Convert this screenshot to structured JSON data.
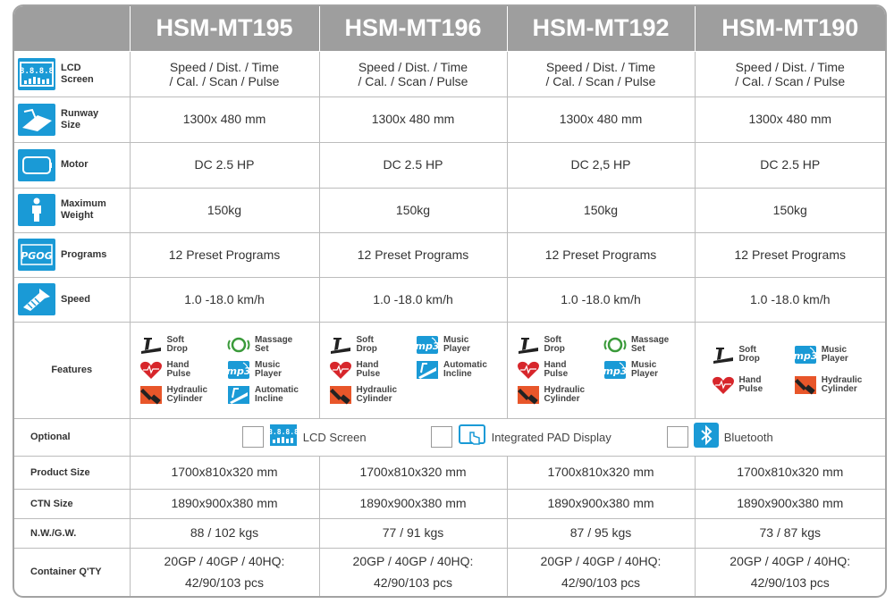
{
  "header": {
    "models": [
      "HSM-MT195",
      "HSM-MT196",
      "HSM-MT192",
      "HSM-MT190"
    ]
  },
  "rows": {
    "lcd": {
      "label": "LCD\nScreen",
      "icon": "lcd-screen-icon",
      "values": [
        "Speed / Dist. / Time\n/ Cal. / Scan / Pulse",
        "Speed / Dist. / Time\n/ Cal. / Scan / Pulse",
        "Speed / Dist. / Time\n/ Cal. / Scan / Pulse",
        "Speed / Dist. / Time\n/ Cal. / Scan / Pulse"
      ]
    },
    "runway": {
      "label": "Runway\nSize",
      "icon": "runway-icon",
      "values": [
        "1300x 480 mm",
        "1300x 480 mm",
        "1300x 480 mm",
        "1300x 480 mm"
      ]
    },
    "motor": {
      "label": "Motor",
      "icon": "motor-icon",
      "values": [
        "DC 2.5 HP",
        "DC 2.5 HP",
        "DC 2,5 HP",
        "DC 2.5 HP"
      ]
    },
    "weight": {
      "label": "Maximum\nWeight",
      "icon": "person-icon",
      "values": [
        "150kg",
        "150kg",
        "150kg",
        "150kg"
      ]
    },
    "programs": {
      "label": "Programs",
      "icon": "programs-icon",
      "values": [
        "12 Preset Programs",
        "12 Preset Programs",
        "12 Preset Programs",
        "12 Preset Programs"
      ]
    },
    "speed": {
      "label": "Speed",
      "icon": "speed-icon",
      "values": [
        "1.0 -18.0 km/h",
        "1.0 -18.0 km/h",
        "1.0 -18.0 km/h",
        "1.0 -18.0 km/h"
      ]
    }
  },
  "features": {
    "label": "Features",
    "cols": [
      [
        {
          "name": "Soft\nDrop",
          "icon": "soft-drop-icon"
        },
        {
          "name": "Massage\nSet",
          "icon": "massage-icon"
        },
        {
          "name": "Hand\nPulse",
          "icon": "heart-icon"
        },
        {
          "name": "Music\nPlayer",
          "icon": "mp3-icon"
        },
        {
          "name": "Hydraulic\nCylinder",
          "icon": "hydraulic-icon"
        },
        {
          "name": "Automatic\nIncline",
          "icon": "incline-icon"
        }
      ],
      [
        {
          "name": "Soft\nDrop",
          "icon": "soft-drop-icon"
        },
        {
          "name": "Music\nPlayer",
          "icon": "mp3-icon"
        },
        {
          "name": "Hand\nPulse",
          "icon": "heart-icon"
        },
        {
          "name": "Automatic\nIncline",
          "icon": "incline-icon"
        },
        {
          "name": "Hydraulic\nCylinder",
          "icon": "hydraulic-icon"
        }
      ],
      [
        {
          "name": "Soft\nDrop",
          "icon": "soft-drop-icon"
        },
        {
          "name": "Massage\nSet",
          "icon": "massage-icon"
        },
        {
          "name": "Hand\nPulse",
          "icon": "heart-icon"
        },
        {
          "name": "Music\nPlayer",
          "icon": "mp3-icon"
        },
        {
          "name": "Hydraulic\nCylinder",
          "icon": "hydraulic-icon"
        }
      ],
      [
        {
          "name": "Soft\nDrop",
          "icon": "soft-drop-icon"
        },
        {
          "name": "Music\nPlayer",
          "icon": "mp3-icon"
        },
        {
          "name": "Hand\nPulse",
          "icon": "heart-icon"
        },
        {
          "name": "Hydraulic\nCylinder",
          "icon": "hydraulic-icon"
        }
      ]
    ]
  },
  "optional": {
    "label": "Optional",
    "items": [
      {
        "text": "LCD Screen",
        "icon": "lcd-screen-icon"
      },
      {
        "text": "Integrated PAD Display",
        "icon": "tablet-touch-icon"
      },
      {
        "text": "Bluetooth",
        "icon": "bluetooth-icon"
      }
    ]
  },
  "specs": {
    "product_size": {
      "label": "Product Size",
      "values": [
        "1700x810x320  mm",
        "1700x810x320  mm",
        "1700x810x320  mm",
        "1700x810x320  mm"
      ]
    },
    "ctn_size": {
      "label": "CTN Size",
      "values": [
        "1890x900x380 mm",
        "1890x900x380 mm",
        "1890x900x380 mm",
        "1890x900x380 mm"
      ]
    },
    "weight": {
      "label": "N.W./G.W.",
      "values": [
        "88 / 102 kgs",
        "77 / 91 kgs",
        "87 / 95 kgs",
        "73 / 87 kgs"
      ]
    },
    "container": {
      "label": "Container Q'TY",
      "values": [
        "20GP / 40GP / 40HQ:\n42/90/103 pcs",
        "20GP / 40GP / 40HQ:\n42/90/103 pcs",
        "20GP / 40GP / 40HQ:\n42/90/103 pcs",
        "20GP / 40GP / 40HQ:\n42/90/103 pcs"
      ]
    }
  },
  "colors": {
    "header_bg": "#9e9e9e",
    "icon_blue": "#1a9ad6",
    "heart_red": "#d7262b",
    "hydraulic_orange": "#e8562a"
  }
}
